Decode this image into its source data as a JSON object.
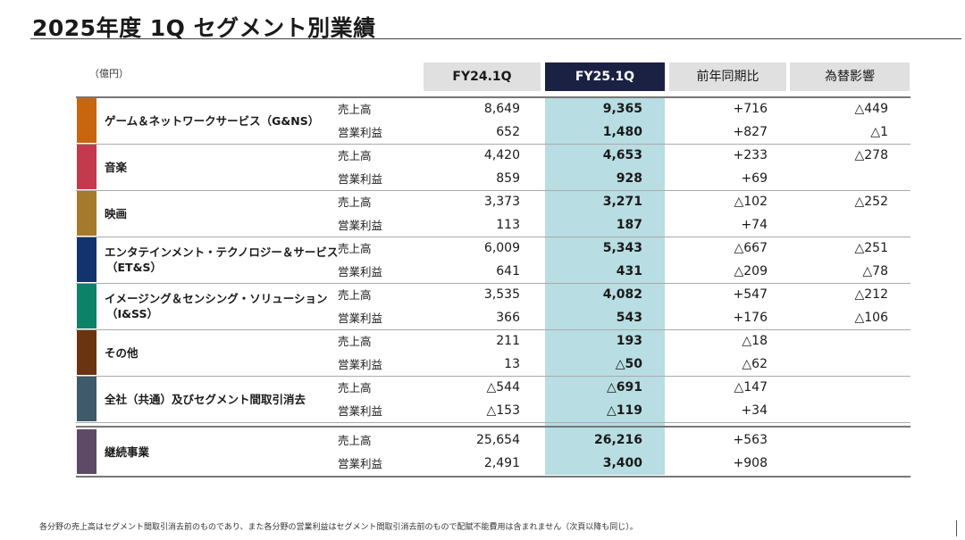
{
  "title": "2025年度 1Q セグメント別業績",
  "unit": "（億円）",
  "headers": {
    "fy24": "FY24.1Q",
    "fy25": "FY25.1Q",
    "yoy": "前年同期比",
    "fx": "為替影響"
  },
  "colors": {
    "gns": "#c8650f",
    "music": "#c23a4b",
    "pictures": "#a67a2c",
    "etns": "#13336f",
    "iss": "#0c8268",
    "other": "#6b3411",
    "corp": "#3f5a6a",
    "continuing": "#5e4a66",
    "fy25_header": "#1b2143",
    "fy25_band": "#b8dde2"
  },
  "segments": [
    {
      "name": "ゲーム＆ネットワークサービス（G&NS）",
      "rows": [
        {
          "metric": "売上高",
          "fy24": "8,649",
          "fy25": "9,365",
          "yoy": "+716",
          "fx": "△449"
        },
        {
          "metric": "営業利益",
          "fy24": "652",
          "fy25": "1,480",
          "yoy": "+827",
          "fx": "△1"
        }
      ]
    },
    {
      "name": "音楽",
      "rows": [
        {
          "metric": "売上高",
          "fy24": "4,420",
          "fy25": "4,653",
          "yoy": "+233",
          "fx": "△278"
        },
        {
          "metric": "営業利益",
          "fy24": "859",
          "fy25": "928",
          "yoy": "+69",
          "fx": ""
        }
      ]
    },
    {
      "name": "映画",
      "rows": [
        {
          "metric": "売上高",
          "fy24": "3,373",
          "fy25": "3,271",
          "yoy": "△102",
          "fx": "△252"
        },
        {
          "metric": "営業利益",
          "fy24": "113",
          "fy25": "187",
          "yoy": "+74",
          "fx": ""
        }
      ]
    },
    {
      "name": "エンタテインメント・テクノロジー＆サービス",
      "name2": "（ET&S）",
      "rows": [
        {
          "metric": "売上高",
          "fy24": "6,009",
          "fy25": "5,343",
          "yoy": "△667",
          "fx": "△251"
        },
        {
          "metric": "営業利益",
          "fy24": "641",
          "fy25": "431",
          "yoy": "△209",
          "fx": "△78"
        }
      ]
    },
    {
      "name": "イメージング＆センシング・ソリューション",
      "name2": "（I&SS）",
      "rows": [
        {
          "metric": "売上高",
          "fy24": "3,535",
          "fy25": "4,082",
          "yoy": "+547",
          "fx": "△212"
        },
        {
          "metric": "営業利益",
          "fy24": "366",
          "fy25": "543",
          "yoy": "+176",
          "fx": "△106"
        }
      ]
    },
    {
      "name": "その他",
      "rows": [
        {
          "metric": "売上高",
          "fy24": "211",
          "fy25": "193",
          "yoy": "△18",
          "fx": ""
        },
        {
          "metric": "営業利益",
          "fy24": "13",
          "fy25": "△50",
          "yoy": "△62",
          "fx": ""
        }
      ]
    },
    {
      "name": "全社（共通）及びセグメント間取引消去",
      "rows": [
        {
          "metric": "売上高",
          "fy24": "△544",
          "fy25": "△691",
          "yoy": "△147",
          "fx": ""
        },
        {
          "metric": "営業利益",
          "fy24": "△153",
          "fy25": "△119",
          "yoy": "+34",
          "fx": ""
        }
      ]
    },
    {
      "name": "継続事業",
      "rows": [
        {
          "metric": "売上高",
          "fy24": "25,654",
          "fy25": "26,216",
          "yoy": "+563",
          "fx": ""
        },
        {
          "metric": "営業利益",
          "fy24": "2,491",
          "fy25": "3,400",
          "yoy": "+908",
          "fx": ""
        }
      ]
    }
  ],
  "footnote": "各分野の売上高はセグメント間取引消去前のものであり、また各分野の営業利益はセグメント間取引消去前のもので配賦不能費用は含まれません（次頁以降も同じ）。"
}
